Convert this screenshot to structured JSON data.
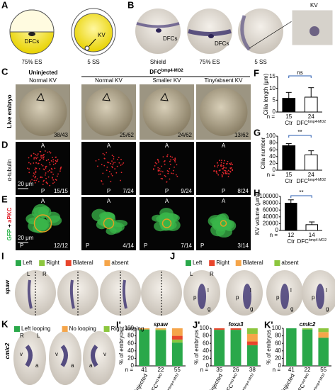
{
  "figure": {
    "A": {
      "letter": "A",
      "labels": [
        "DFCs",
        "KV"
      ],
      "stages": [
        "75% ES",
        "5 SS"
      ]
    },
    "B": {
      "letter": "B",
      "dfcs": "DFCs",
      "stages": [
        "Shield",
        "75% ES",
        "5 SS"
      ],
      "inset": "KV"
    },
    "C": {
      "letter": "C",
      "group_uninjected": "Uninjected",
      "group_mo": "DFC",
      "group_mo_sup": "bmp4-MO2",
      "columns": [
        "Normal KV",
        "Normal KV",
        "Smaller KV",
        "Tiny/absent KV"
      ],
      "row_label": "Live embryo",
      "counts": [
        "38/43",
        "25/62",
        "24/62",
        "13/62"
      ]
    },
    "D": {
      "letter": "D",
      "row_label": "α-tubulin",
      "scale": "20 μm",
      "counts": [
        "15/15",
        "7/24",
        "9/24",
        "8/24"
      ],
      "anterior": "A",
      "posterior": "P"
    },
    "E": {
      "letter": "E",
      "row_label_1": "GFP",
      "row_label_plus": "+",
      "row_label_2": "aPKC",
      "scale": "20 μm",
      "counts": [
        "12/12",
        "4/14",
        "7/14",
        "3/14"
      ],
      "anterior": "A",
      "posterior": "P"
    },
    "I": {
      "letter": "I",
      "gene": "spaw",
      "sides": [
        "L",
        "R"
      ]
    },
    "J": {
      "letter": "J",
      "gene": "foxa3",
      "sides": [
        "L",
        "R"
      ],
      "marks": [
        "l",
        "p",
        "g"
      ]
    },
    "K": {
      "letter": "K",
      "gene": "cmlc2",
      "sides": [
        "R",
        "L"
      ],
      "marks": [
        "v",
        "a"
      ]
    }
  },
  "chart_data": [
    {
      "type": "bar",
      "panel": "F",
      "ylabel": "Cilia length (μm)",
      "categories": [
        "Ctr",
        "DFC"
      ],
      "category_sups": [
        null,
        "bmp4-MO2"
      ],
      "values": [
        5.8,
        6.3
      ],
      "errors": [
        2.5,
        4.0
      ],
      "colors": [
        "#000000",
        "#ffffff"
      ],
      "ylim": [
        0,
        15
      ],
      "yticks": [
        0,
        5,
        10,
        15
      ],
      "significance": "ns",
      "n_label": "n =",
      "n": [
        15,
        24
      ]
    },
    {
      "type": "bar",
      "panel": "G",
      "ylabel": "Cilia number",
      "categories": [
        "Ctr",
        "DFC"
      ],
      "category_sups": [
        null,
        "bmp4-MO2"
      ],
      "values": [
        72,
        45
      ],
      "errors": [
        6,
        12
      ],
      "colors": [
        "#000000",
        "#ffffff"
      ],
      "ylim": [
        0,
        100
      ],
      "yticks": [
        0,
        20,
        40,
        60,
        80,
        100
      ],
      "significance": "**",
      "n_label": "n =",
      "n": [
        15,
        24
      ]
    },
    {
      "type": "bar",
      "panel": "H",
      "ylabel": "KV volume (μm³)",
      "categories": [
        "Ctr",
        "DFC"
      ],
      "category_sups": [
        null,
        "bmp4-MO2"
      ],
      "values": [
        80000,
        17000
      ],
      "errors": [
        10000,
        8000
      ],
      "colors": [
        "#000000",
        "#ffffff"
      ],
      "ylim": [
        0,
        100000
      ],
      "yticks": [
        0,
        20000,
        40000,
        60000,
        80000,
        100000
      ],
      "significance": "**",
      "n_label": "n =",
      "n": [
        12,
        14
      ]
    },
    {
      "type": "stacked_bar",
      "panel": "I'",
      "title": "spaw",
      "ylabel": "% of embryos",
      "categories": [
        "Uninjected",
        "DFC",
        "DFC"
      ],
      "category_sups": [
        null,
        "std-MO",
        "bmp4-MO2"
      ],
      "n_label": "n =",
      "n": [
        41,
        22,
        55
      ],
      "ylim": [
        0,
        100
      ],
      "yticks": [
        0,
        20,
        40,
        60,
        80,
        100
      ],
      "series": [
        {
          "name": "Left",
          "color": "#2aa84a",
          "values": [
            97,
            95,
            62
          ]
        },
        {
          "name": "Right",
          "color": "#8cc63e",
          "values": [
            0,
            2,
            8
          ]
        },
        {
          "name": "Bilateral",
          "color": "#e8452c",
          "values": [
            0,
            0,
            10
          ]
        },
        {
          "name": "absent",
          "color": "#f5a54a",
          "values": [
            3,
            3,
            20
          ]
        }
      ]
    },
    {
      "type": "stacked_bar",
      "panel": "J'",
      "title": "foxa3",
      "ylabel": "% of embryos",
      "categories": [
        "Uninjected",
        "DFC",
        "DFC"
      ],
      "category_sups": [
        null,
        "std-MO",
        "bmp4-MO2"
      ],
      "n_label": "n =",
      "n": [
        35,
        26,
        38
      ],
      "ylim": [
        0,
        100
      ],
      "yticks": [
        0,
        20,
        40,
        60,
        80,
        100
      ],
      "series": [
        {
          "name": "Left",
          "color": "#2aa84a",
          "values": [
            96,
            96,
            55
          ]
        },
        {
          "name": "Right",
          "color": "#e8452c",
          "values": [
            4,
            4,
            10
          ]
        },
        {
          "name": "Bilateral",
          "color": "#f5a54a",
          "values": [
            0,
            0,
            20
          ]
        },
        {
          "name": "absent",
          "color": "#8cc63e",
          "values": [
            0,
            0,
            15
          ]
        }
      ]
    },
    {
      "type": "stacked_bar",
      "panel": "K'",
      "title": "cmlc2",
      "ylabel": "% of embryos",
      "categories": [
        "Uninjected",
        "DFC",
        "DFC"
      ],
      "category_sups": [
        null,
        "std-MO",
        "bmp4-MO2"
      ],
      "n_label": "n =",
      "n": [
        41,
        22,
        55
      ],
      "ylim": [
        0,
        100
      ],
      "yticks": [
        0,
        20,
        40,
        60,
        80,
        100
      ],
      "series": [
        {
          "name": "Left looping",
          "color": "#2aa84a",
          "values": [
            100,
            97,
            75
          ]
        },
        {
          "name": "No looping",
          "color": "#f5a54a",
          "values": [
            0,
            0,
            15
          ]
        },
        {
          "name": "Right looping",
          "color": "#8cc63e",
          "values": [
            0,
            3,
            10
          ]
        }
      ]
    }
  ]
}
